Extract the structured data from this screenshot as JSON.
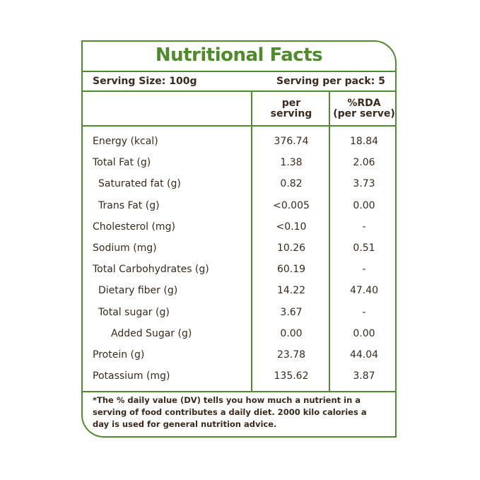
{
  "title": "Nutritional Facts",
  "serving_size": "Serving Size: 100g",
  "serving_per_pack": "Serving per pack: 5",
  "headers": {
    "per_serving": "per\nserving",
    "rda": "%RDA\n(per serve)"
  },
  "rows": [
    {
      "name": "Energy (kcal)",
      "per": "376.74",
      "rda": "18.84",
      "indent": 0
    },
    {
      "name": "Total Fat (g)",
      "per": "1.38",
      "rda": "2.06",
      "indent": 0
    },
    {
      "name": "Saturated fat (g)",
      "per": "0.82",
      "rda": "3.73",
      "indent": 1
    },
    {
      "name": "Trans Fat (g)",
      "per": "<0.005",
      "rda": "0.00",
      "indent": 1
    },
    {
      "name": "Cholesterol (mg)",
      "per": "<0.10",
      "rda": "-",
      "indent": 0
    },
    {
      "name": "Sodium (mg)",
      "per": "10.26",
      "rda": "0.51",
      "indent": 0
    },
    {
      "name": "Total Carbohydrates  (g)",
      "per": "60.19",
      "rda": "-",
      "indent": 0
    },
    {
      "name": "Dietary fiber (g)",
      "per": "14.22",
      "rda": "47.40",
      "indent": 1
    },
    {
      "name": "Total sugar (g)",
      "per": "3.67",
      "rda": "-",
      "indent": 1
    },
    {
      "name": "Added Sugar (g)",
      "per": "0.00",
      "rda": "0.00",
      "indent": 2
    },
    {
      "name": "Protein (g)",
      "per": "23.78",
      "rda": "44.04",
      "indent": 0
    },
    {
      "name": "Potassium (mg)",
      "per": "135.62",
      "rda": "3.87",
      "indent": 0
    }
  ],
  "footnote": "*The % daily value (DV) tells you how much a nutrient in a serving of food contributes a daily diet. 2000 kilo calories a day is used for general nutrition advice.",
  "colors": {
    "border": "#4f8a2b",
    "text": "#3b2a1e"
  }
}
